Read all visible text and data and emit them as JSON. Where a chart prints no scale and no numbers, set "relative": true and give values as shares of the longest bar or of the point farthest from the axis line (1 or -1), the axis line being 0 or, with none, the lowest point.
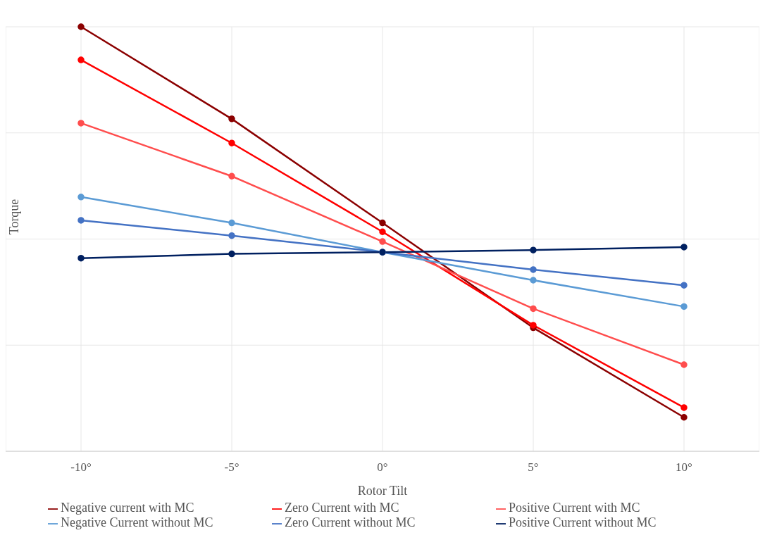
{
  "chart_data": {
    "type": "line",
    "xlabel": "Rotor Tilt",
    "ylabel": "Torque",
    "relative": true,
    "x": [
      -10,
      -5,
      0,
      5,
      10
    ],
    "xlim": [
      -12.5,
      12.5
    ],
    "xticks": [
      {
        "value": -10,
        "label": "-10°"
      },
      {
        "value": -5,
        "label": "-5°"
      },
      {
        "value": 0,
        "label": "0°"
      },
      {
        "value": 5,
        "label": "5°"
      },
      {
        "value": 10,
        "label": "10°"
      }
    ],
    "series": [
      {
        "name": "Negative current with MC",
        "color": "#8b0000",
        "values": [
          1,
          0.783,
          0.538,
          0.291,
          0.08
        ]
      },
      {
        "name": "Zero Current with MC",
        "color": "#ff0000",
        "values": [
          0.922,
          0.726,
          0.517,
          0.297,
          0.103
        ]
      },
      {
        "name": "Positive Current with MC",
        "color": "#ff4d4d",
        "values": [
          0.773,
          0.648,
          0.494,
          0.336,
          0.204
        ]
      },
      {
        "name": "Negative Current without MC",
        "color": "#5b9bd5",
        "values": [
          0.599,
          0.538,
          0.469,
          0.403,
          0.341
        ]
      },
      {
        "name": "Zero Current without MC",
        "color": "#4472c4",
        "values": [
          0.544,
          0.508,
          0.469,
          0.428,
          0.391
        ]
      },
      {
        "name": "Positive Current without MC",
        "color": "#002060",
        "values": [
          0.455,
          0.465,
          0.469,
          0.474,
          0.481
        ]
      }
    ],
    "grid": true,
    "legend": "bottom",
    "marker": "circle",
    "line_style": "solid"
  }
}
